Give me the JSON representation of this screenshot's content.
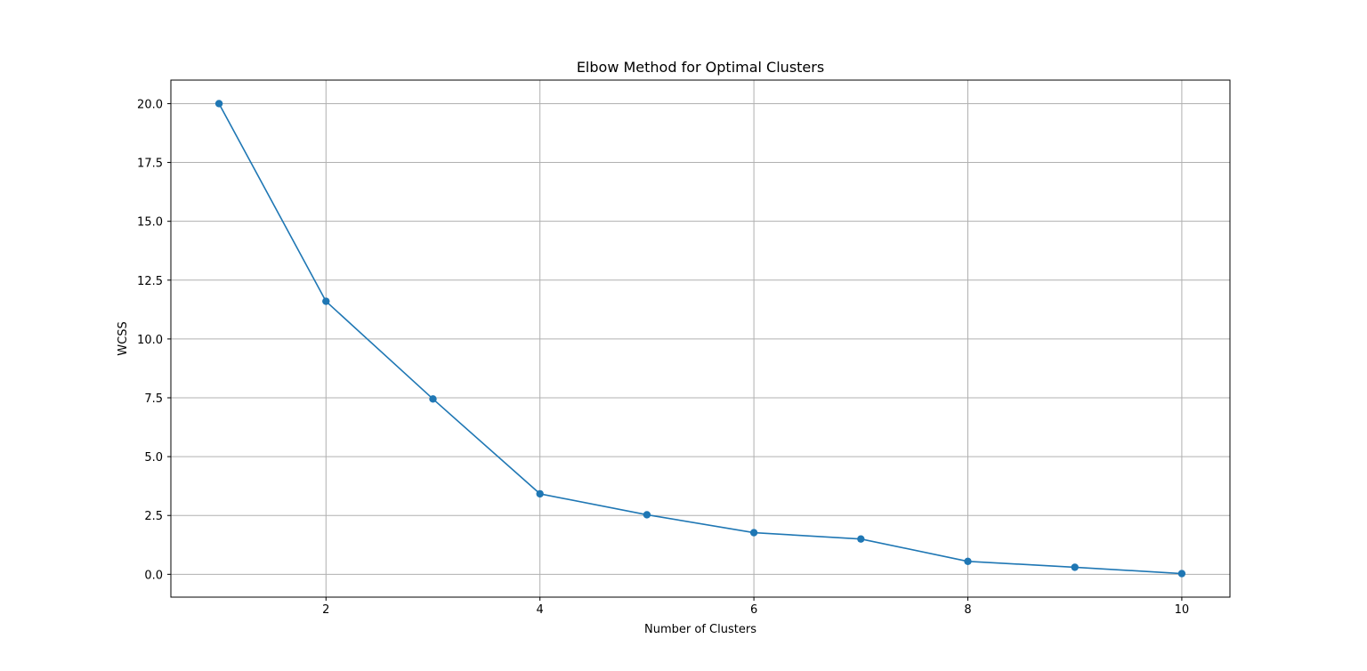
{
  "chart_data": {
    "type": "line",
    "title": "Elbow Method for Optimal Clusters",
    "xlabel": "Number of Clusters",
    "ylabel": "WCSS",
    "x": [
      1,
      2,
      3,
      4,
      5,
      6,
      7,
      8,
      9,
      10
    ],
    "series": [
      {
        "values": [
          20.0,
          11.6,
          7.45,
          3.42,
          2.53,
          1.77,
          1.5,
          0.55,
          0.3,
          0.03
        ],
        "marker": "circle"
      }
    ],
    "xlim": [
      0.55,
      10.45
    ],
    "ylim": [
      -0.97,
      21.0
    ],
    "xticks": [
      2,
      4,
      6,
      8,
      10
    ],
    "xtick_labels": [
      "2",
      "4",
      "6",
      "8",
      "10"
    ],
    "yticks": [
      0.0,
      2.5,
      5.0,
      7.5,
      10.0,
      12.5,
      15.0,
      17.5,
      20.0
    ],
    "ytick_labels": [
      "0.0",
      "2.5",
      "5.0",
      "7.5",
      "10.0",
      "12.5",
      "15.0",
      "17.5",
      "20.0"
    ],
    "grid": true,
    "colors": {
      "line": "#1f77b4",
      "grid": "#b0b0b0",
      "axes": "#000000"
    }
  }
}
